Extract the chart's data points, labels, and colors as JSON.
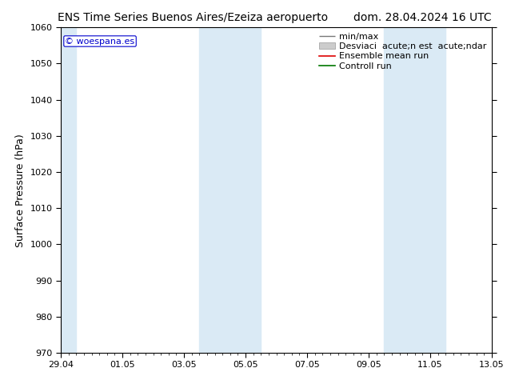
{
  "title_left": "ENS Time Series Buenos Aires/Ezeiza aeropuerto",
  "title_right": "dom. 28.04.2024 16 UTC",
  "ylabel": "Surface Pressure (hPa)",
  "ylim": [
    970,
    1060
  ],
  "yticks": [
    970,
    980,
    990,
    1000,
    1010,
    1020,
    1030,
    1040,
    1050,
    1060
  ],
  "x_tick_labels": [
    "29.04",
    "01.05",
    "03.05",
    "05.05",
    "07.05",
    "09.05",
    "11.05",
    "13.05"
  ],
  "x_tick_positions": [
    0,
    2,
    4,
    6,
    8,
    10,
    12,
    14
  ],
  "xlim": [
    0,
    14
  ],
  "watermark": "© woespana.es",
  "background_color": "#ffffff",
  "plot_bg_color": "#ffffff",
  "band_color": "#daeaf5",
  "band_ranges": [
    [
      -0.5,
      0.5
    ],
    [
      4.5,
      5.5
    ],
    [
      5.5,
      6.5
    ],
    [
      10.5,
      11.5
    ],
    [
      11.5,
      12.5
    ]
  ],
  "title_fontsize": 10,
  "ylabel_fontsize": 9,
  "tick_fontsize": 8,
  "legend_fontsize": 8
}
